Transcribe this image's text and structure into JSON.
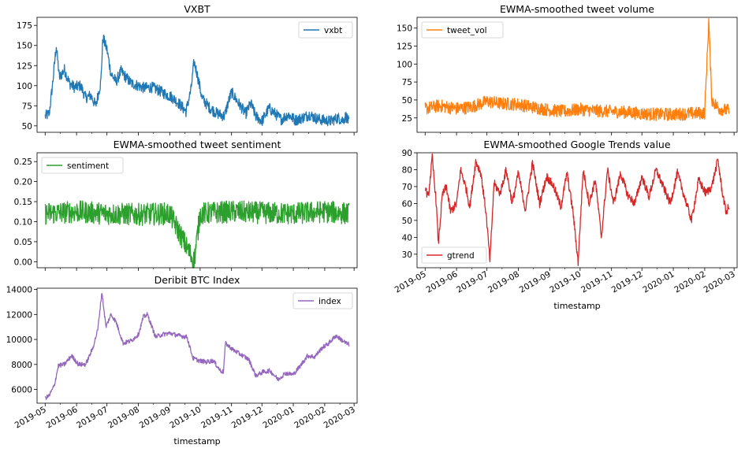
{
  "chart_data": [
    {
      "type": "line",
      "title": "VXBT",
      "xlabel": "",
      "ylabel": "",
      "ylim": [
        42,
        185
      ],
      "yticks": [
        50,
        75,
        100,
        125,
        150,
        175
      ],
      "legend": "upper right",
      "series": [
        {
          "name": "vxbt",
          "color": "#1f77b4",
          "x": [
            "2019-05-01",
            "2019-05-05",
            "2019-05-08",
            "2019-05-12",
            "2019-05-15",
            "2019-05-20",
            "2019-05-25",
            "2019-05-30",
            "2019-06-05",
            "2019-06-10",
            "2019-06-15",
            "2019-06-20",
            "2019-06-25",
            "2019-06-27",
            "2019-07-01",
            "2019-07-05",
            "2019-07-10",
            "2019-07-15",
            "2019-07-20",
            "2019-07-25",
            "2019-08-01",
            "2019-08-07",
            "2019-08-14",
            "2019-08-20",
            "2019-08-27",
            "2019-09-03",
            "2019-09-10",
            "2019-09-17",
            "2019-09-22",
            "2019-09-25",
            "2019-09-28",
            "2019-10-03",
            "2019-10-10",
            "2019-10-17",
            "2019-10-25",
            "2019-10-28",
            "2019-11-01",
            "2019-11-08",
            "2019-11-15",
            "2019-11-20",
            "2019-11-25",
            "2019-12-01",
            "2019-12-08",
            "2019-12-15",
            "2019-12-20",
            "2019-12-27",
            "2020-01-03",
            "2020-01-10",
            "2020-01-17",
            "2020-01-24",
            "2020-01-31",
            "2020-02-07",
            "2020-02-14",
            "2020-02-19",
            "2020-02-22",
            "2020-02-25"
          ],
          "y": [
            62,
            65,
            98,
            150,
            110,
            120,
            103,
            98,
            100,
            85,
            88,
            75,
            105,
            160,
            145,
            115,
            105,
            118,
            110,
            103,
            100,
            97,
            98,
            95,
            90,
            86,
            78,
            68,
            95,
            130,
            115,
            84,
            73,
            66,
            62,
            76,
            92,
            78,
            65,
            78,
            62,
            56,
            72,
            64,
            58,
            64,
            57,
            60,
            64,
            59,
            57,
            56,
            60,
            57,
            62,
            54
          ]
        }
      ]
    },
    {
      "type": "line",
      "title": "EWMA-smoothed tweet volume",
      "xlabel": "",
      "ylabel": "",
      "ylim": [
        5,
        165
      ],
      "yticks": [
        25,
        50,
        75,
        100,
        125,
        150
      ],
      "legend": "upper left",
      "series": [
        {
          "name": "tweet_vol",
          "color": "#ff7f0e",
          "x": [
            "2019-05-01",
            "2019-05-15",
            "2019-06-01",
            "2019-06-15",
            "2019-07-01",
            "2019-07-15",
            "2019-08-01",
            "2019-08-15",
            "2019-09-01",
            "2019-09-15",
            "2019-10-01",
            "2019-10-15",
            "2019-11-01",
            "2019-11-15",
            "2019-12-01",
            "2019-12-15",
            "2020-01-01",
            "2020-01-15",
            "2020-02-01",
            "2020-02-05",
            "2020-02-08",
            "2020-02-15",
            "2020-02-25"
          ],
          "y": [
            38,
            42,
            38,
            40,
            48,
            45,
            44,
            40,
            36,
            34,
            37,
            35,
            34,
            33,
            31,
            30,
            30,
            31,
            32,
            160,
            50,
            38,
            35
          ]
        }
      ]
    },
    {
      "type": "line",
      "title": "EWMA-smoothed tweet sentiment",
      "xlabel": "",
      "ylabel": "",
      "ylim": [
        -0.015,
        0.272
      ],
      "yticks": [
        0.0,
        0.05,
        0.1,
        0.15,
        0.2,
        0.25
      ],
      "legend": "upper left",
      "series": [
        {
          "name": "sentiment",
          "color": "#2ca02c",
          "x": [
            "2019-05-01",
            "2019-06-01",
            "2019-07-01",
            "2019-08-01",
            "2019-09-01",
            "2019-09-25",
            "2019-10-01",
            "2019-11-01",
            "2019-12-01",
            "2020-01-01",
            "2020-02-01",
            "2020-02-25"
          ],
          "y": [
            0.12,
            0.125,
            0.12,
            0.118,
            0.12,
            0.0,
            0.12,
            0.125,
            0.122,
            0.12,
            0.125,
            0.12
          ]
        }
      ]
    },
    {
      "type": "line",
      "title": "EWMA-smoothed Google Trends value",
      "xlabel": "timestamp",
      "ylabel": "",
      "ylim": [
        22,
        90
      ],
      "yticks": [
        30,
        40,
        50,
        60,
        70,
        80,
        90
      ],
      "legend": "lower left",
      "series": [
        {
          "name": "gtrend",
          "color": "#d62728",
          "x": [
            "2019-05-01",
            "2019-05-04",
            "2019-05-08",
            "2019-05-12",
            "2019-05-14",
            "2019-05-18",
            "2019-05-22",
            "2019-05-26",
            "2019-06-01",
            "2019-06-05",
            "2019-06-10",
            "2019-06-14",
            "2019-06-20",
            "2019-06-25",
            "2019-06-30",
            "2019-07-04",
            "2019-07-08",
            "2019-07-14",
            "2019-07-20",
            "2019-07-26",
            "2019-08-01",
            "2019-08-08",
            "2019-08-15",
            "2019-08-22",
            "2019-08-29",
            "2019-09-05",
            "2019-09-12",
            "2019-09-18",
            "2019-09-24",
            "2019-09-29",
            "2019-10-04",
            "2019-10-10",
            "2019-10-16",
            "2019-10-22",
            "2019-10-28",
            "2019-11-03",
            "2019-11-10",
            "2019-11-17",
            "2019-11-24",
            "2019-12-01",
            "2019-12-08",
            "2019-12-15",
            "2019-12-22",
            "2019-12-29",
            "2020-01-05",
            "2020-01-12",
            "2020-01-19",
            "2020-01-26",
            "2020-02-02",
            "2020-02-08",
            "2020-02-14",
            "2020-02-18",
            "2020-02-22",
            "2020-02-25"
          ],
          "y": [
            70,
            63,
            87,
            60,
            36,
            65,
            70,
            55,
            60,
            80,
            70,
            58,
            85,
            78,
            55,
            26,
            72,
            66,
            80,
            60,
            78,
            56,
            84,
            60,
            76,
            70,
            58,
            78,
            55,
            25,
            80,
            60,
            74,
            40,
            80,
            60,
            78,
            65,
            60,
            76,
            64,
            80,
            70,
            60,
            78,
            64,
            50,
            74,
            66,
            70,
            86,
            68,
            55,
            58
          ]
        }
      ]
    },
    {
      "type": "line",
      "title": "Deribit BTC Index",
      "xlabel": "timestamp",
      "ylabel": "",
      "ylim": [
        4900,
        14100
      ],
      "yticks": [
        6000,
        8000,
        10000,
        12000,
        14000
      ],
      "legend": "upper right",
      "series": [
        {
          "name": "index",
          "color": "#9467bd",
          "x": [
            "2019-05-01",
            "2019-05-05",
            "2019-05-10",
            "2019-05-14",
            "2019-05-20",
            "2019-05-27",
            "2019-06-03",
            "2019-06-10",
            "2019-06-17",
            "2019-06-22",
            "2019-06-26",
            "2019-06-30",
            "2019-07-05",
            "2019-07-10",
            "2019-07-17",
            "2019-07-25",
            "2019-08-01",
            "2019-08-06",
            "2019-08-10",
            "2019-08-18",
            "2019-08-25",
            "2019-09-01",
            "2019-09-10",
            "2019-09-18",
            "2019-09-24",
            "2019-09-30",
            "2019-10-07",
            "2019-10-14",
            "2019-10-21",
            "2019-10-24",
            "2019-10-26",
            "2019-11-02",
            "2019-11-10",
            "2019-11-18",
            "2019-11-25",
            "2019-12-02",
            "2019-12-09",
            "2019-12-17",
            "2019-12-24",
            "2020-01-01",
            "2020-01-08",
            "2020-01-15",
            "2020-01-22",
            "2020-01-29",
            "2020-02-05",
            "2020-02-12",
            "2020-02-17",
            "2020-02-22",
            "2020-02-25"
          ],
          "y": [
            5300,
            5500,
            6300,
            7900,
            8000,
            8700,
            8000,
            8000,
            9300,
            10800,
            13800,
            11000,
            12000,
            11400,
            9700,
            9900,
            10400,
            11800,
            12000,
            10200,
            10400,
            10500,
            10300,
            10200,
            8500,
            8300,
            8200,
            8300,
            7500,
            7400,
            9700,
            9200,
            8800,
            8400,
            7100,
            7400,
            7500,
            6800,
            7300,
            7200,
            7900,
            8700,
            8600,
            9300,
            9700,
            10300,
            10000,
            9700,
            9600
          ]
        }
      ]
    }
  ],
  "x_tick_labels": [
    "2019-05",
    "2019-06",
    "2019-07",
    "2019-08",
    "2019-09",
    "2019-10",
    "2019-11",
    "2019-12",
    "2020-01",
    "2020-02",
    "2020-03"
  ],
  "x_range": [
    "2019-04-23",
    "2020-03-04"
  ]
}
